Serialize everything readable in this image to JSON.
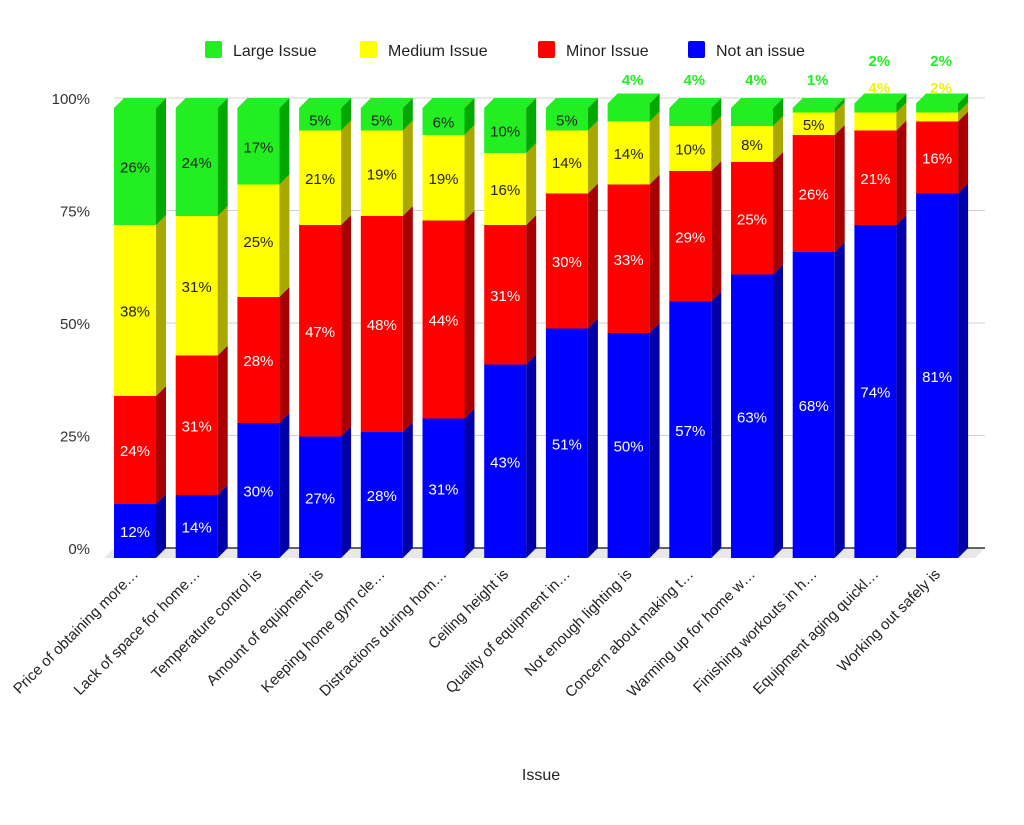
{
  "chart_data": {
    "type": "bar",
    "stacked": true,
    "percent_stacked": true,
    "three_d": true,
    "xlabel": "Issue",
    "ylabel": "",
    "ylim": [
      0,
      100
    ],
    "yticks": [
      "0%",
      "25%",
      "50%",
      "75%",
      "100%"
    ],
    "grid": true,
    "legend_position": "top",
    "categories": [
      "Price of obtaining more…",
      "Lack of space for home…",
      "Temperature control is",
      "Amount of equipment is",
      "Keeping home gym cle…",
      "Distractions during hom…",
      "Ceiling height is",
      "Quality of equipment in…",
      "Not enough lighting is",
      "Concern about making t…",
      "Warming up for home w…",
      "Finishing workouts in h…",
      "Equipment aging quickl…",
      "Working out safely is"
    ],
    "series": [
      {
        "name": "Not an issue",
        "color": "#0000ff",
        "side": "#0000a8",
        "label_color": "#ffffff",
        "values": [
          12,
          14,
          30,
          27,
          28,
          31,
          43,
          51,
          50,
          57,
          63,
          68,
          74,
          81
        ]
      },
      {
        "name": "Minor Issue",
        "color": "#ff0000",
        "side": "#a80000",
        "label_color": "#ffffff",
        "values": [
          24,
          31,
          28,
          47,
          48,
          44,
          31,
          30,
          33,
          29,
          25,
          26,
          21,
          16
        ]
      },
      {
        "name": "Medium Issue",
        "color": "#ffff00",
        "side": "#a8a800",
        "label_color": "#222222",
        "outside_color": "#f2f200",
        "values": [
          38,
          31,
          25,
          21,
          19,
          19,
          16,
          14,
          14,
          10,
          8,
          5,
          4,
          2
        ]
      },
      {
        "name": "Large Issue",
        "color": "#22ee22",
        "side": "#00a800",
        "label_color": "#222222",
        "outside_color": "#22ee22",
        "values": [
          26,
          24,
          17,
          5,
          5,
          6,
          10,
          5,
          4,
          4,
          4,
          1,
          2,
          2
        ]
      }
    ]
  }
}
